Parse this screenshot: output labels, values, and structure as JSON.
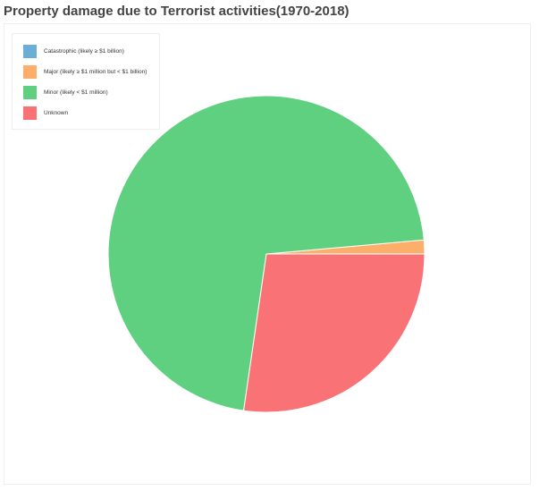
{
  "chart_data": {
    "type": "pie",
    "title": "Property damage due to Terrorist activities(1970-2018)",
    "legend_position": "top-left",
    "slices": [
      {
        "label": "Catastrophic (likely ≥ $1 billion)",
        "value": 0.02,
        "color": "#6baed6"
      },
      {
        "label": "Major (likely ≥ $1 million but < $1 billion)",
        "value": 1.4,
        "color": "#fdae6b"
      },
      {
        "label": "Minor (likely < $1 million)",
        "value": 71.3,
        "color": "#5fd07f"
      },
      {
        "label": "Unknown",
        "value": 27.3,
        "color": "#f87276"
      }
    ]
  }
}
